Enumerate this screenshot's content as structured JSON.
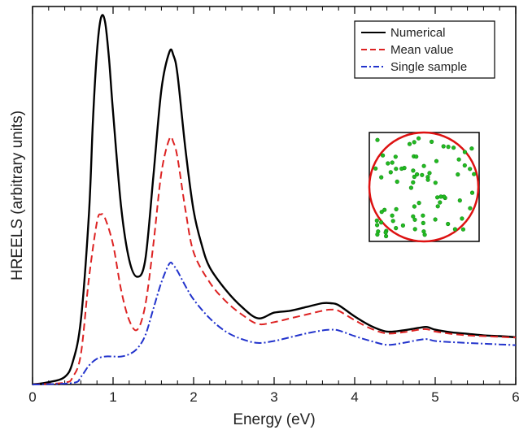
{
  "chart_data": {
    "type": "line",
    "xlabel": "Energy (eV)",
    "ylabel": "HREELS (arbitrary units)",
    "xlim": [
      0,
      6
    ],
    "ylim": [
      0,
      1
    ],
    "x_ticks": [
      "0",
      "1",
      "2",
      "3",
      "4",
      "5",
      "6"
    ],
    "y_ticks_labeled": false,
    "legend_position": "top-right",
    "series": [
      {
        "name": "Numerical",
        "color": "#000000",
        "style": "solid",
        "x": [
          0,
          0.2,
          0.4,
          0.5,
          0.6,
          0.7,
          0.75,
          0.8,
          0.85,
          0.9,
          0.95,
          1.0,
          1.1,
          1.2,
          1.3,
          1.4,
          1.5,
          1.6,
          1.7,
          1.75,
          1.8,
          1.9,
          2.0,
          2.1,
          2.2,
          2.4,
          2.6,
          2.8,
          3.0,
          3.2,
          3.4,
          3.6,
          3.7,
          3.8,
          4.0,
          4.2,
          4.4,
          4.6,
          4.8,
          4.9,
          5.0,
          5.2,
          5.4,
          5.6,
          5.8,
          6.0
        ],
        "values": [
          0.0,
          0.006,
          0.02,
          0.06,
          0.17,
          0.45,
          0.7,
          0.88,
          0.97,
          0.96,
          0.86,
          0.72,
          0.47,
          0.33,
          0.285,
          0.33,
          0.55,
          0.78,
          0.88,
          0.87,
          0.82,
          0.62,
          0.46,
          0.37,
          0.31,
          0.25,
          0.205,
          0.175,
          0.19,
          0.195,
          0.205,
          0.215,
          0.215,
          0.21,
          0.18,
          0.155,
          0.14,
          0.143,
          0.15,
          0.152,
          0.145,
          0.138,
          0.134,
          0.13,
          0.128,
          0.125
        ]
      },
      {
        "name": "Mean value",
        "color": "#dd2222",
        "style": "dashed",
        "x": [
          0,
          0.4,
          0.5,
          0.6,
          0.7,
          0.8,
          0.85,
          0.9,
          1.0,
          1.1,
          1.2,
          1.3,
          1.4,
          1.5,
          1.6,
          1.7,
          1.75,
          1.8,
          1.9,
          2.0,
          2.2,
          2.4,
          2.6,
          2.8,
          3.0,
          3.2,
          3.4,
          3.6,
          3.7,
          3.8,
          4.0,
          4.2,
          4.4,
          4.6,
          4.8,
          4.9,
          5.0,
          5.2,
          5.4,
          5.6,
          5.8,
          6.0
        ],
        "values": [
          0.0,
          0.005,
          0.02,
          0.08,
          0.28,
          0.43,
          0.45,
          0.44,
          0.37,
          0.25,
          0.17,
          0.145,
          0.21,
          0.37,
          0.56,
          0.65,
          0.64,
          0.6,
          0.46,
          0.35,
          0.27,
          0.22,
          0.185,
          0.16,
          0.165,
          0.175,
          0.185,
          0.195,
          0.198,
          0.195,
          0.17,
          0.148,
          0.135,
          0.138,
          0.145,
          0.146,
          0.14,
          0.134,
          0.13,
          0.128,
          0.126,
          0.124
        ]
      },
      {
        "name": "Single sample",
        "color": "#2233cc",
        "style": "dashdot",
        "x": [
          0,
          0.5,
          0.6,
          0.7,
          0.8,
          0.9,
          1.0,
          1.1,
          1.2,
          1.3,
          1.4,
          1.5,
          1.6,
          1.7,
          1.75,
          1.8,
          1.9,
          2.0,
          2.2,
          2.4,
          2.6,
          2.8,
          3.0,
          3.2,
          3.4,
          3.6,
          3.7,
          3.8,
          4.0,
          4.2,
          4.4,
          4.6,
          4.8,
          4.9,
          5.0,
          5.2,
          5.4,
          5.6,
          5.8,
          6.0
        ],
        "values": [
          0.0,
          0.004,
          0.02,
          0.05,
          0.068,
          0.074,
          0.074,
          0.074,
          0.08,
          0.095,
          0.13,
          0.2,
          0.27,
          0.32,
          0.315,
          0.3,
          0.26,
          0.225,
          0.175,
          0.14,
          0.12,
          0.11,
          0.115,
          0.125,
          0.135,
          0.143,
          0.145,
          0.143,
          0.128,
          0.115,
          0.105,
          0.11,
          0.118,
          0.12,
          0.115,
          0.112,
          0.11,
          0.108,
          0.106,
          0.104
        ]
      }
    ]
  }
}
